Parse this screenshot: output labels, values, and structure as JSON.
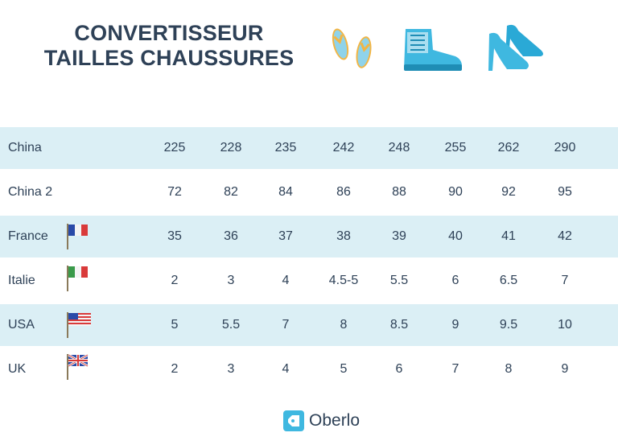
{
  "title": {
    "line1": "CONVERTISSEUR",
    "line2": "TAILLES CHAUSSURES"
  },
  "icons": [
    "flip-flops-icon",
    "boot-icon",
    "high-heels-icon"
  ],
  "colors": {
    "shaded_row": "#dbeff5",
    "accent": "#3fb8e0",
    "text": "#2e4157"
  },
  "rows": [
    {
      "country": "China",
      "flag": "",
      "sizes": [
        "225",
        "228",
        "235",
        "242",
        "248",
        "255",
        "262",
        "290"
      ]
    },
    {
      "country": "China 2",
      "flag": "",
      "sizes": [
        "72",
        "82",
        "84",
        "86",
        "88",
        "90",
        "92",
        "95"
      ]
    },
    {
      "country": "France",
      "flag": "france-flag-icon",
      "sizes": [
        "35",
        "36",
        "37",
        "38",
        "39",
        "40",
        "41",
        "42"
      ]
    },
    {
      "country": "Italie",
      "flag": "italy-flag-icon",
      "sizes": [
        "2",
        "3",
        "4",
        "4.5-5",
        "5.5",
        "6",
        "6.5",
        "7"
      ]
    },
    {
      "country": "USA",
      "flag": "usa-flag-icon",
      "sizes": [
        "5",
        "5.5",
        "7",
        "8",
        "8.5",
        "9",
        "9.5",
        "10"
      ]
    },
    {
      "country": "UK",
      "flag": "uk-flag-icon",
      "sizes": [
        "2",
        "3",
        "4",
        "5",
        "6",
        "7",
        "8",
        "9"
      ]
    }
  ],
  "logo": {
    "text": "Oberlo"
  }
}
